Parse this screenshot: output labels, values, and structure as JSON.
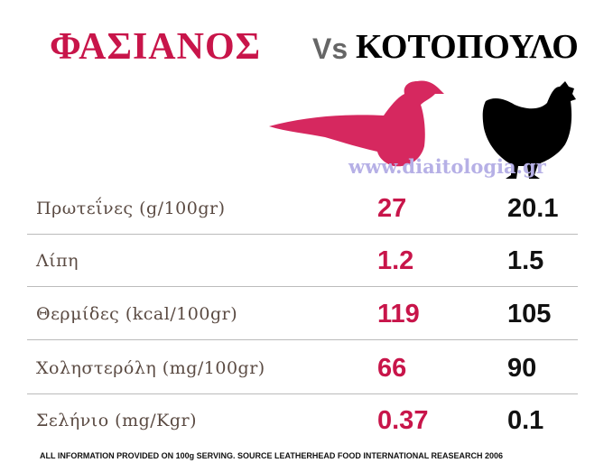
{
  "header": {
    "left": "ΦΑΣΙΑΝΟΣ",
    "vs": "Vs",
    "right": "ΚΟΤΟΠΟΥΛΟ",
    "watermark": "www.diaitologia.gr"
  },
  "table": {
    "rows": [
      [
        "Πρωτεΐνες (g/100gr)",
        27,
        20.1
      ],
      [
        "Λίπη",
        1.2,
        1.5
      ],
      [
        "Θερμίδες (kcal/100gr)",
        119,
        105
      ],
      [
        "Χοληστερόλη (mg/100gr)",
        66,
        90
      ],
      [
        "Σελήνιο (mg/Kgr)",
        0.37,
        0.1
      ]
    ]
  },
  "footer": "ALL INFORMATION PROVIDED ON 100g SERVING.  SOURCE LEATHERHEAD FOOD INTERNATIONAL REASEARCH 2006"
}
